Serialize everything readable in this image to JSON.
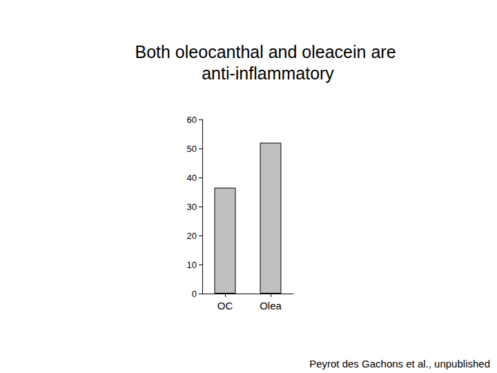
{
  "chart_data": {
    "type": "bar",
    "title": "Both oleocanthal and oleacein are anti-inflammatory",
    "categories": [
      "OC",
      "Olea"
    ],
    "values": [
      36.5,
      52
    ],
    "color": "#c0c0c0",
    "ylim": [
      0,
      60
    ],
    "yticks": [
      0,
      10,
      20,
      30,
      40,
      50,
      60
    ],
    "grid": false,
    "annotations": [
      "Peyrot des Gachons et al., unpublished"
    ]
  }
}
